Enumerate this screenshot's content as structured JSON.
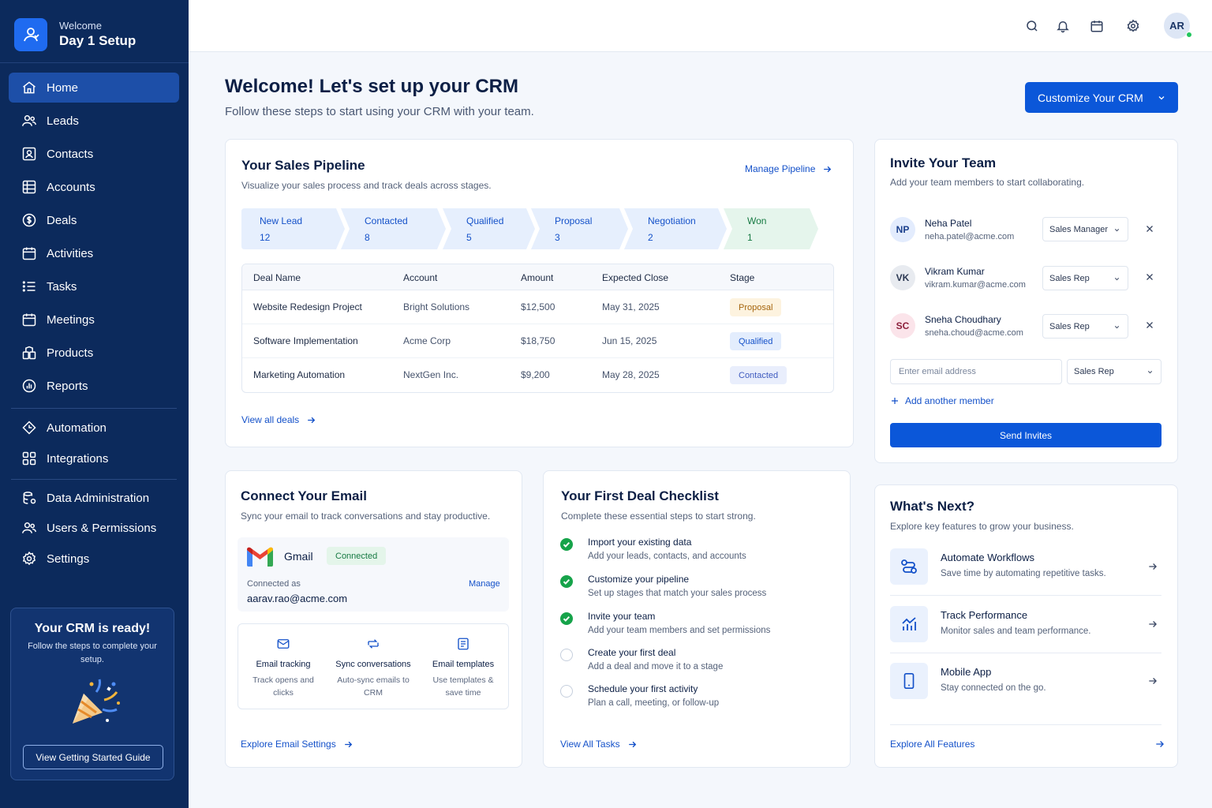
{
  "brand": {
    "small": "Welcome",
    "big": "Day 1 Setup"
  },
  "nav": [
    {
      "label": "Home",
      "icon": "home-icon",
      "active": true
    },
    {
      "label": "Leads",
      "icon": "users-icon"
    },
    {
      "label": "Contacts",
      "icon": "contact-card-icon"
    },
    {
      "label": "Accounts",
      "icon": "grid-icon"
    },
    {
      "label": "Deals",
      "icon": "dollar-icon"
    },
    {
      "label": "Activities",
      "icon": "calendar-icon"
    },
    {
      "label": "Tasks",
      "icon": "list-icon"
    },
    {
      "label": "Meetings",
      "icon": "calendar-icon"
    },
    {
      "label": "Products",
      "icon": "products-icon"
    },
    {
      "label": "Reports",
      "icon": "reports-icon"
    },
    {
      "label": "Automation",
      "icon": "automation-icon"
    },
    {
      "label": "Integrations",
      "icon": "integrations-icon"
    },
    {
      "label": "Data Administration",
      "icon": "data-admin-icon"
    },
    {
      "label": "Users & Permissions",
      "icon": "users-permissions-icon"
    },
    {
      "label": "Settings",
      "icon": "gear-icon"
    }
  ],
  "ready": {
    "title": "Your CRM is ready!",
    "sub": "Follow the steps to complete your setup.",
    "button": "View Getting Started Guide"
  },
  "topbar": {
    "avatar": "AR"
  },
  "header": {
    "title": "Welcome! Let's set up your CRM",
    "sub": "Follow these steps to start using your CRM with your team.",
    "cta": "Customize Your CRM"
  },
  "pipeline": {
    "title": "Your Sales Pipeline",
    "sub": "Visualize your sales process and track deals across stages.",
    "manage": "Manage Pipeline",
    "stages": [
      {
        "name": "New Lead",
        "count": "12"
      },
      {
        "name": "Contacted",
        "count": "8"
      },
      {
        "name": "Qualified",
        "count": "5"
      },
      {
        "name": "Proposal",
        "count": "3"
      },
      {
        "name": "Negotiation",
        "count": "2"
      },
      {
        "name": "Won",
        "count": "1"
      }
    ],
    "columns": [
      "Deal Name",
      "Account",
      "Amount",
      "Expected Close",
      "Stage"
    ],
    "rows": [
      {
        "deal": "Website Redesign Project",
        "account": "Bright Solutions",
        "amount": "$12,500",
        "close": "May 31, 2025",
        "stage": "Proposal"
      },
      {
        "deal": "Software Implementation",
        "account": "Acme Corp",
        "amount": "$18,750",
        "close": "Jun 15, 2025",
        "stage": "Qualified"
      },
      {
        "deal": "Marketing Automation",
        "account": "NextGen Inc.",
        "amount": "$9,200",
        "close": "May 28, 2025",
        "stage": "Contacted"
      }
    ],
    "view_all": "View all deals"
  },
  "invite": {
    "title": "Invite Your Team",
    "sub": "Add your team members to start collaborating.",
    "members": [
      {
        "initials": "NP",
        "name": "Neha Patel",
        "email": "neha.patel@acme.com",
        "role": "Sales Manager"
      },
      {
        "initials": "VK",
        "name": "Vikram Kumar",
        "email": "vikram.kumar@acme.com",
        "role": "Sales Rep"
      },
      {
        "initials": "SC",
        "name": "Sneha Choudhary",
        "email": "sneha.choud@acme.com",
        "role": "Sales Rep"
      }
    ],
    "email_placeholder": "Enter email address",
    "new_role": "Sales Rep",
    "add_member": "Add another member",
    "send": "Send Invites"
  },
  "email": {
    "title": "Connect Your Email",
    "sub": "Sync your email to track conversations and stay productive.",
    "provider": "Gmail",
    "status": "Connected",
    "connected_as_label": "Connected as",
    "connected_as": "aarav.rao@acme.com",
    "manage": "Manage",
    "features": [
      {
        "title": "Email tracking",
        "desc": "Track opens and clicks"
      },
      {
        "title": "Sync conversations",
        "desc": "Auto-sync emails to CRM"
      },
      {
        "title": "Email templates",
        "desc": "Use templates & save time"
      }
    ],
    "explore": "Explore Email Settings"
  },
  "checklist": {
    "title": "Your First Deal Checklist",
    "sub": "Complete these essential steps to start strong.",
    "items": [
      {
        "title": "Import your existing data",
        "desc": "Add your leads, contacts, and accounts",
        "done": true
      },
      {
        "title": "Customize your pipeline",
        "desc": "Set up stages that match your sales process",
        "done": true
      },
      {
        "title": "Invite your team",
        "desc": "Add your team members and set permissions",
        "done": true
      },
      {
        "title": "Create your first deal",
        "desc": "Add a deal and move it to a stage",
        "done": false
      },
      {
        "title": "Schedule your first activity",
        "desc": "Plan a call, meeting, or follow-up",
        "done": false
      }
    ],
    "view_all": "View All Tasks"
  },
  "next": {
    "title": "What's Next?",
    "sub": "Explore key features to grow your business.",
    "items": [
      {
        "title": "Automate Workflows",
        "desc": "Save time by automating repetitive tasks.",
        "icon": "workflow-icon"
      },
      {
        "title": "Track Performance",
        "desc": "Monitor sales and team performance.",
        "icon": "chart-icon"
      },
      {
        "title": "Mobile App",
        "desc": "Stay connected on the go.",
        "icon": "mobile-icon"
      }
    ],
    "explore": "Explore All Features"
  },
  "colors": {
    "sidebar": "#0c2a5c",
    "primary": "#0b57d9",
    "success": "#16a34a"
  }
}
